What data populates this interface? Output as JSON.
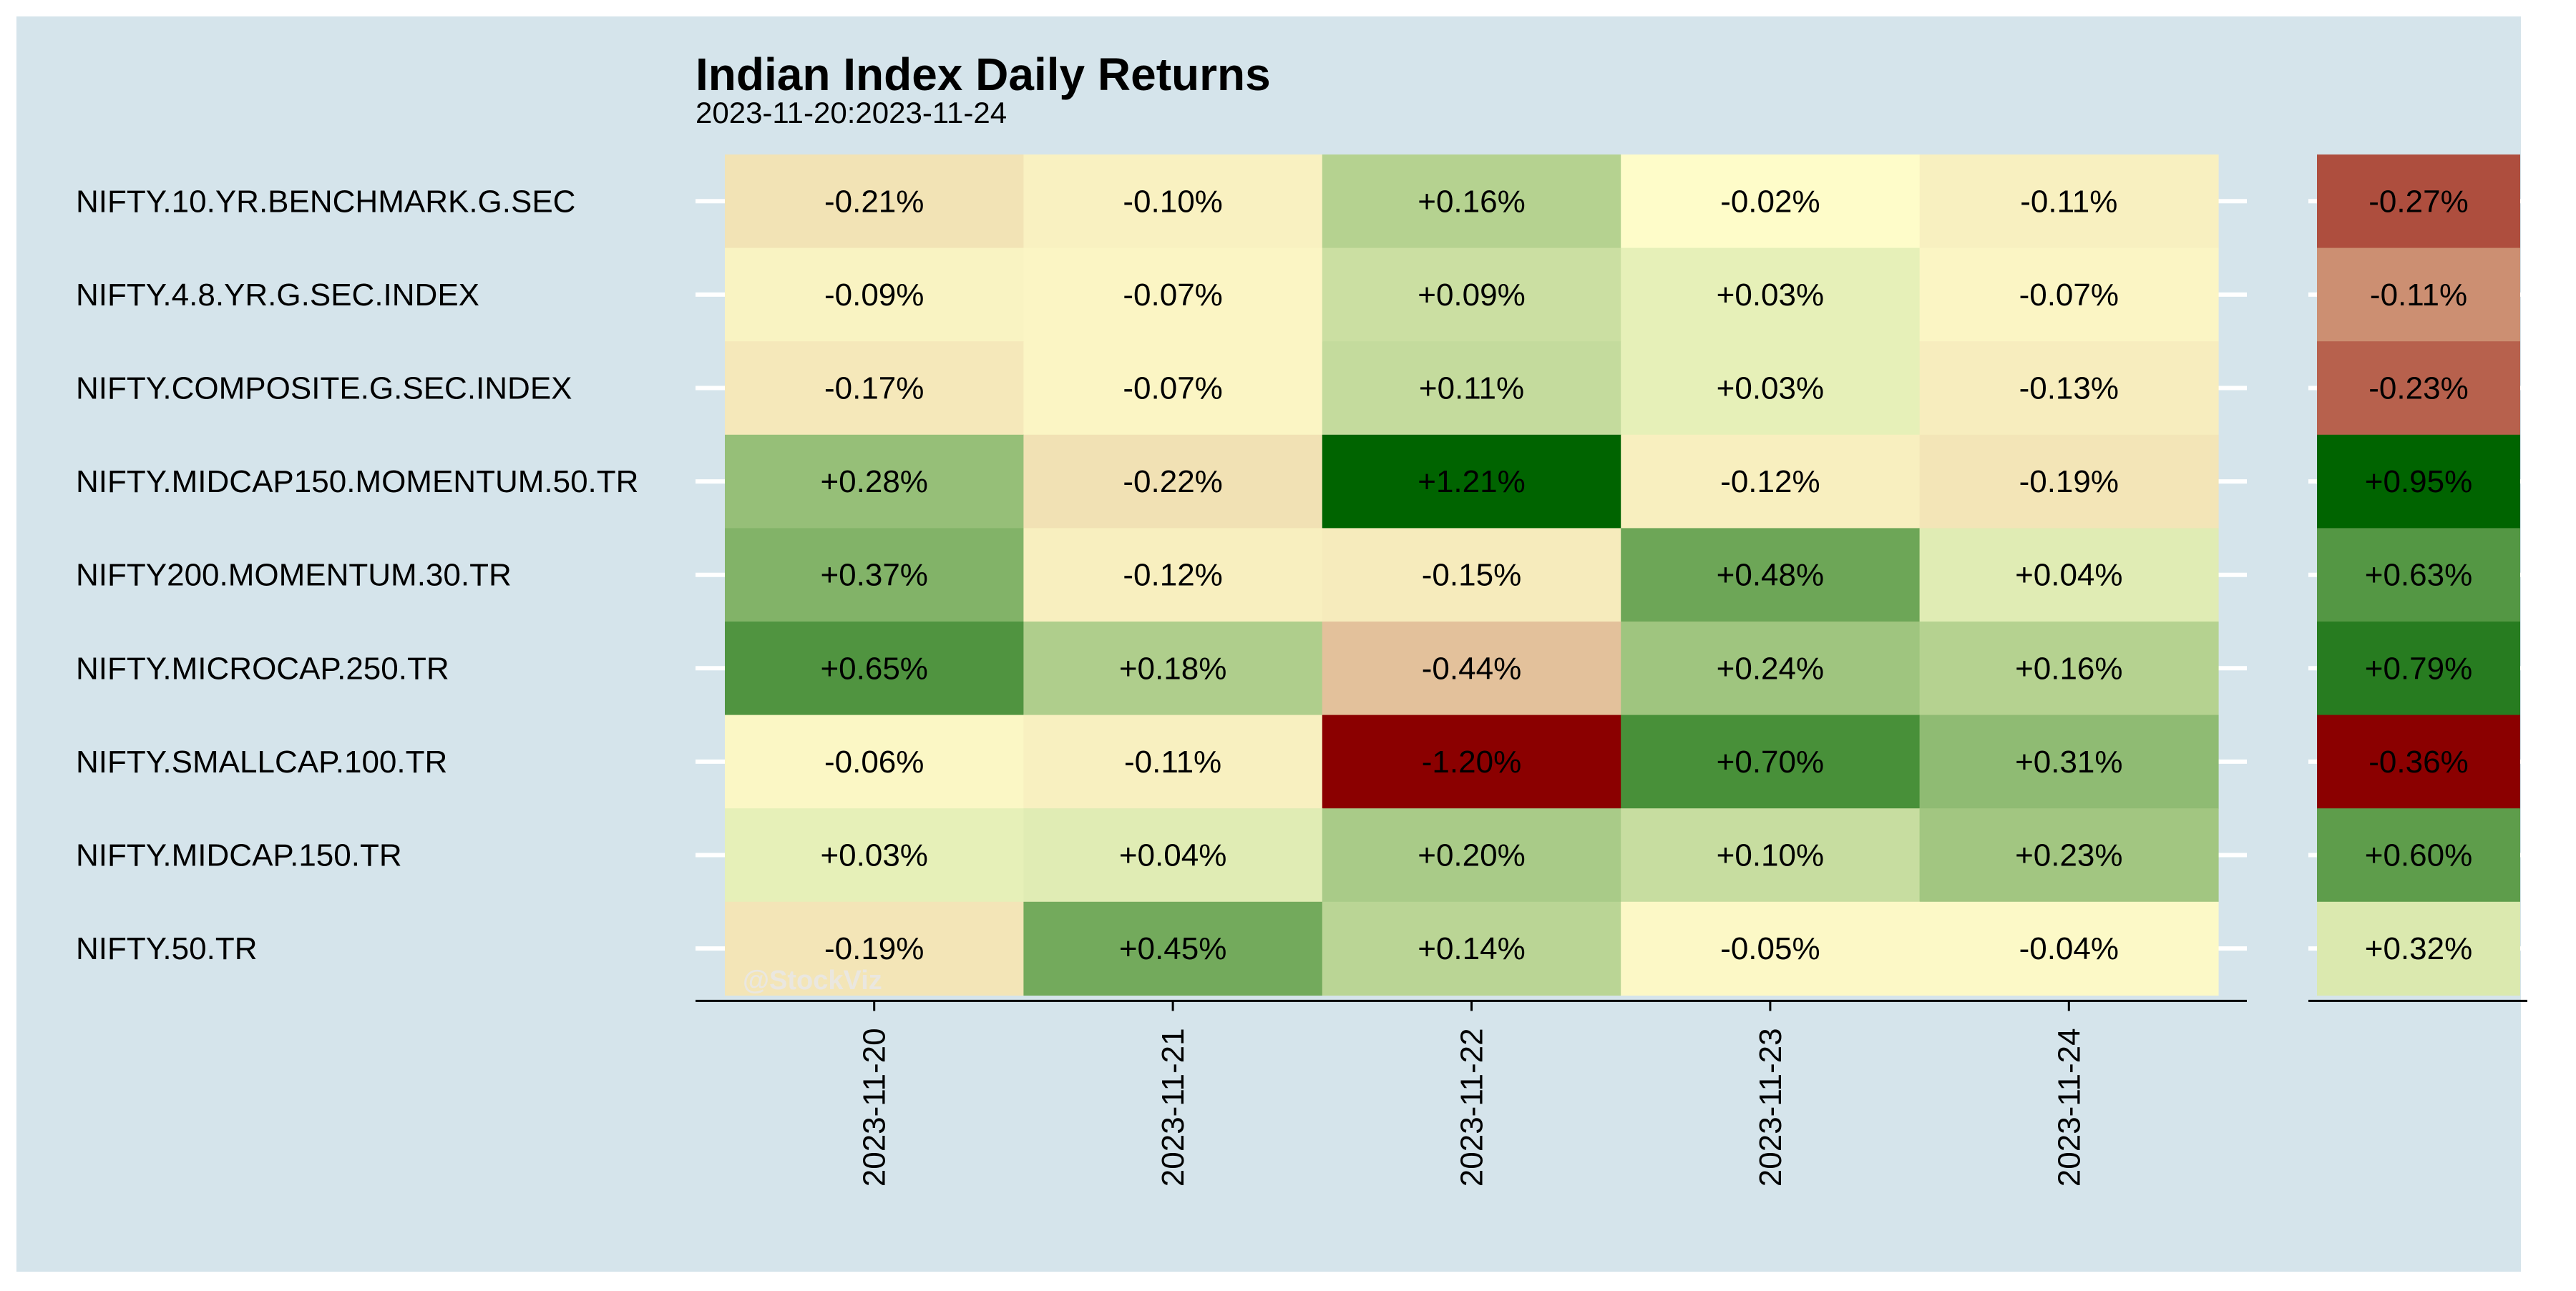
{
  "colors": {
    "panel_background": "#d5e4eb",
    "outer_background": "#ffffff",
    "gridline": "#ffffff",
    "axis_line": "#000000",
    "text": "#000000",
    "watermark": "#e8e8e8",
    "scale_low": "#8b0000",
    "scale_mid": "#ffffcc",
    "scale_high": "#006400"
  },
  "chart_data": {
    "type": "heatmap",
    "title": "Indian Index Daily Returns",
    "subtitle": "2023-11-20:2023-11-24",
    "watermark": "@StockViz",
    "xlabel": "",
    "ylabel": "",
    "grid": true,
    "legend": "none",
    "x": [
      "2023-11-20",
      "2023-11-21",
      "2023-11-22",
      "2023-11-23",
      "2023-11-24"
    ],
    "y": [
      "NIFTY.10.YR.BENCHMARK.G.SEC",
      "NIFTY.4.8.YR.G.SEC.INDEX",
      "NIFTY.COMPOSITE.G.SEC.INDEX",
      "NIFTY.MIDCAP150.MOMENTUM.50.TR",
      "NIFTY200.MOMENTUM.30.TR",
      "NIFTY.MICROCAP.250.TR",
      "NIFTY.SMALLCAP.100.TR",
      "NIFTY.MIDCAP.150.TR",
      "NIFTY.50.TR"
    ],
    "values": [
      [
        -0.21,
        -0.1,
        0.16,
        -0.02,
        -0.11
      ],
      [
        -0.09,
        -0.07,
        0.09,
        0.03,
        -0.07
      ],
      [
        -0.17,
        -0.07,
        0.11,
        0.03,
        -0.13
      ],
      [
        0.28,
        -0.22,
        1.21,
        -0.12,
        -0.19
      ],
      [
        0.37,
        -0.12,
        -0.15,
        0.48,
        0.04
      ],
      [
        0.65,
        0.18,
        -0.44,
        0.24,
        0.16
      ],
      [
        -0.06,
        -0.11,
        -1.2,
        0.7,
        0.31
      ],
      [
        0.03,
        0.04,
        0.2,
        0.1,
        0.23
      ],
      [
        -0.19,
        0.45,
        0.14,
        -0.05,
        -0.04
      ]
    ],
    "labels": [
      [
        "-0.21%",
        "-0.10%",
        "+0.16%",
        "-0.02%",
        "-0.11%"
      ],
      [
        "-0.09%",
        "-0.07%",
        "+0.09%",
        "+0.03%",
        "-0.07%"
      ],
      [
        "-0.17%",
        "-0.07%",
        "+0.11%",
        "+0.03%",
        "-0.13%"
      ],
      [
        "+0.28%",
        "-0.22%",
        "+1.21%",
        "-0.12%",
        "-0.19%"
      ],
      [
        "+0.37%",
        "-0.12%",
        "-0.15%",
        "+0.48%",
        "+0.04%"
      ],
      [
        "+0.65%",
        "+0.18%",
        "-0.44%",
        "+0.24%",
        "+0.16%"
      ],
      [
        "-0.06%",
        "-0.11%",
        "-1.20%",
        "+0.70%",
        "+0.31%"
      ],
      [
        "+0.03%",
        "+0.04%",
        "+0.20%",
        "+0.10%",
        "+0.23%"
      ],
      [
        "-0.19%",
        "+0.45%",
        "+0.14%",
        "-0.05%",
        "-0.04%"
      ]
    ],
    "summary_column": {
      "values": [
        -0.27,
        -0.11,
        -0.23,
        0.95,
        0.63,
        0.79,
        -0.36,
        0.6,
        0.32
      ],
      "labels": [
        "-0.27%",
        "-0.11%",
        "-0.23%",
        "+0.95%",
        "+0.63%",
        "+0.79%",
        "-0.36%",
        "+0.60%",
        "+0.32%"
      ]
    }
  }
}
